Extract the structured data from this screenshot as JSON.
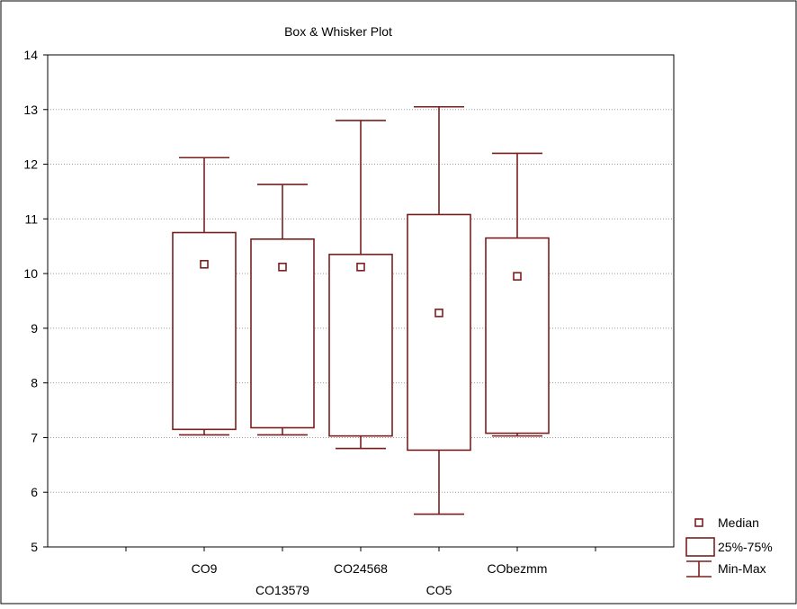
{
  "chart_data": {
    "type": "boxplot",
    "title": "Box & Whisker Plot",
    "xlabel": "",
    "ylabel": "",
    "ylim": [
      5,
      14
    ],
    "yticks": [
      5,
      6,
      7,
      8,
      9,
      10,
      11,
      12,
      13,
      14
    ],
    "grid": true,
    "categories": [
      "CO9",
      "CO13579",
      "CO24568",
      "CO5",
      "CObezmm"
    ],
    "boxes": [
      {
        "category": "CO9",
        "min": 7.05,
        "q1": 7.15,
        "median": 10.17,
        "q3": 10.75,
        "max": 12.12
      },
      {
        "category": "CO13579",
        "min": 7.05,
        "q1": 7.18,
        "median": 10.12,
        "q3": 10.63,
        "max": 11.63
      },
      {
        "category": "CO24568",
        "min": 6.8,
        "q1": 7.03,
        "median": 10.12,
        "q3": 10.35,
        "max": 12.8
      },
      {
        "category": "CO5",
        "min": 5.6,
        "q1": 6.77,
        "median": 9.28,
        "q3": 11.08,
        "max": 13.05
      },
      {
        "category": "CObezmm",
        "min": 7.03,
        "q1": 7.08,
        "median": 9.95,
        "q3": 10.65,
        "max": 12.2
      }
    ],
    "legend": {
      "position": "bottom-right",
      "median": "Median",
      "box": "25%-75%",
      "whisker": "Min-Max"
    }
  },
  "colors": {
    "series": "#7a1f1f",
    "frame": "#000000",
    "grid": "#9a9a9a",
    "background": "#ffffff"
  }
}
